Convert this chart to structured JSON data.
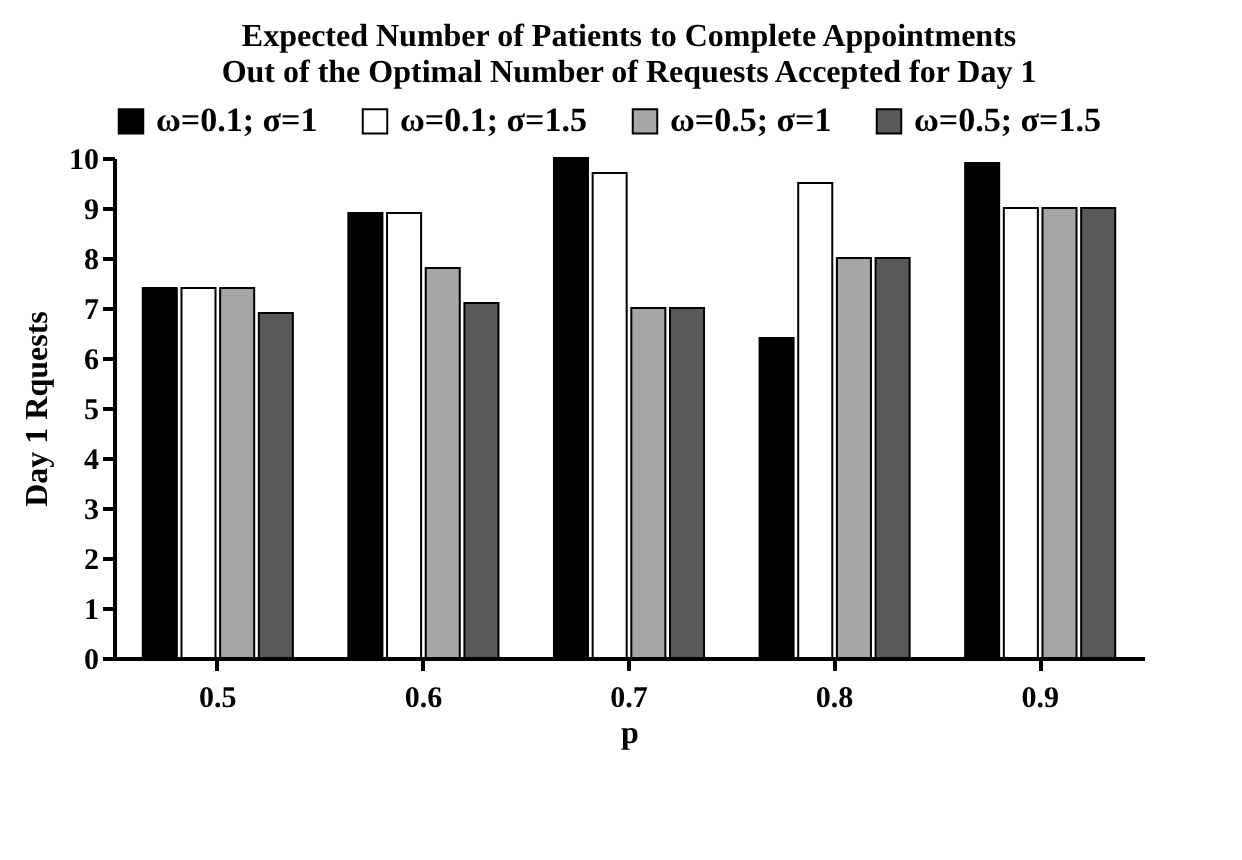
{
  "chart_data": {
    "type": "bar",
    "title": [
      "Expected Number of Patients to Complete Appointments",
      "Out of the Optimal Number of Requests Accepted for Day 1"
    ],
    "xlabel": "p",
    "ylabel": "Day 1 Rquests",
    "categories": [
      "0.5",
      "0.6",
      "0.7",
      "0.8",
      "0.9"
    ],
    "series": [
      {
        "name": "ω=0.1; σ=1",
        "color": "#000000",
        "values": [
          7.4,
          8.9,
          10,
          6.4,
          9.9
        ]
      },
      {
        "name": "ω=0.1; σ=1.5",
        "color": "#ffffff",
        "values": [
          7.4,
          8.9,
          9.7,
          9.5,
          9
        ]
      },
      {
        "name": "ω=0.5; σ=1",
        "color": "#a6a6a6",
        "values": [
          7.4,
          7.8,
          7,
          8,
          9
        ]
      },
      {
        "name": "ω=0.5; σ=1.5",
        "color": "#595959",
        "values": [
          6.9,
          7.1,
          7,
          8,
          9
        ]
      }
    ],
    "ylim": [
      0,
      10
    ],
    "yticks": [
      0,
      1,
      2,
      3,
      4,
      5,
      6,
      7,
      8,
      9,
      10
    ],
    "legend": "top",
    "grid": false
  }
}
